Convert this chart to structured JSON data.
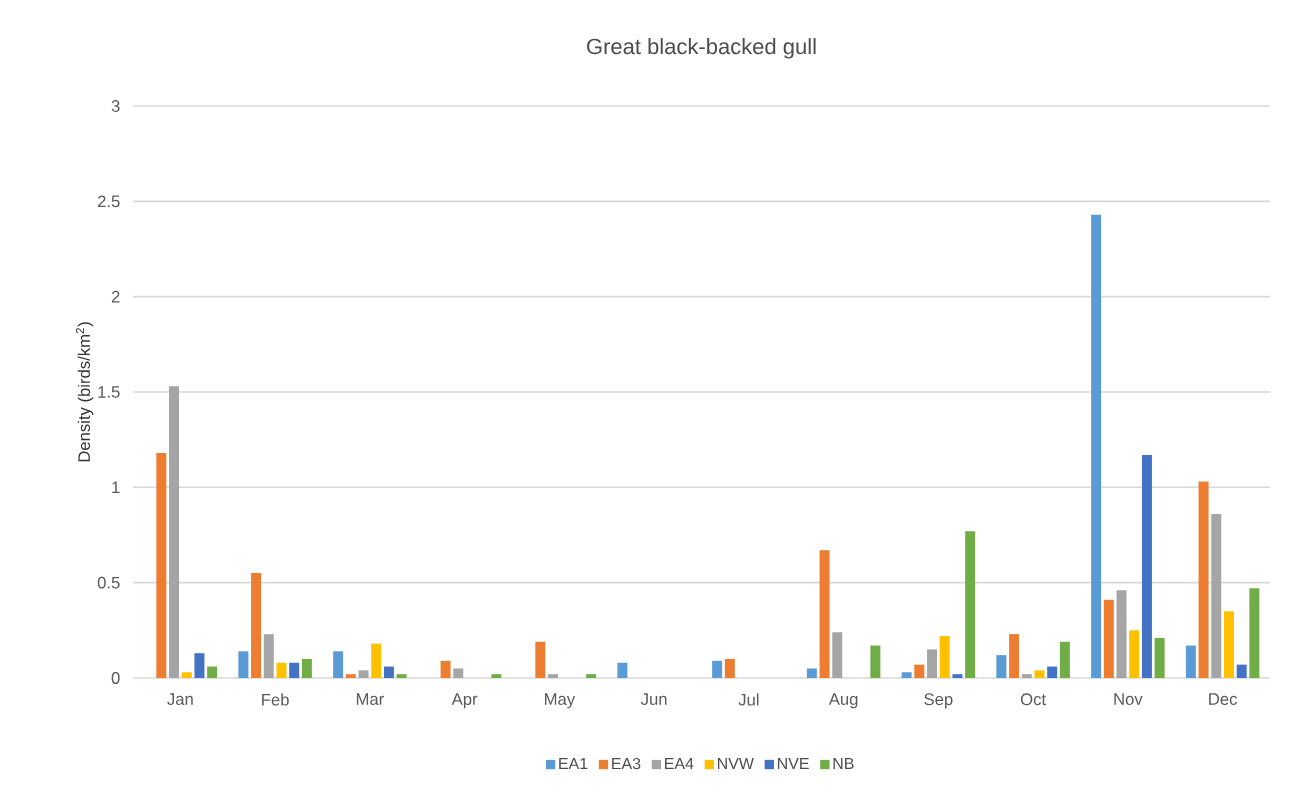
{
  "chart_data": {
    "type": "bar",
    "title": "Great black-backed gull",
    "ylabel": "Density (birds/km$^{2}$)",
    "categories": [
      "Jan",
      "Feb",
      "Mar",
      "Apr",
      "May",
      "Jun",
      "Jul",
      "Aug",
      "Sep",
      "Oct",
      "Nov",
      "Dec"
    ],
    "series": [
      {
        "name": "EA1",
        "color": "#5b9bd5",
        "values": [
          0,
          0.14,
          0.14,
          0,
          0,
          0.08,
          0.09,
          0.05,
          0.03,
          0.12,
          2.43,
          0.17
        ]
      },
      {
        "name": "EA3",
        "color": "#ed7d31",
        "values": [
          1.18,
          0.55,
          0.02,
          0.09,
          0.19,
          0,
          0.1,
          0.67,
          0.07,
          0.23,
          0.41,
          1.03
        ]
      },
      {
        "name": "EA4",
        "color": "#a5a5a5",
        "values": [
          1.53,
          0.23,
          0.04,
          0.05,
          0.02,
          0,
          0,
          0.24,
          0.15,
          0.02,
          0.46,
          0.86
        ]
      },
      {
        "name": "NVW",
        "color": "#ffc000",
        "values": [
          0.03,
          0.08,
          0.18,
          0,
          0,
          0,
          0,
          0,
          0.22,
          0.04,
          0.25,
          0.35
        ]
      },
      {
        "name": "NVE",
        "color": "#4472c4",
        "values": [
          0.13,
          0.08,
          0.06,
          0,
          0,
          0,
          0,
          0,
          0.02,
          0.06,
          1.17,
          0.07
        ]
      },
      {
        "name": "NB",
        "color": "#70ad47",
        "values": [
          0.06,
          0.1,
          0.02,
          0.02,
          0.02,
          0,
          0,
          0.17,
          0.77,
          0.19,
          0.21,
          0.47
        ]
      }
    ],
    "ylim": [
      0,
      3
    ],
    "yticks": [
      0,
      0.5,
      1,
      1.5,
      2,
      2.5,
      3
    ],
    "grid": "y",
    "legend": "bottom"
  }
}
